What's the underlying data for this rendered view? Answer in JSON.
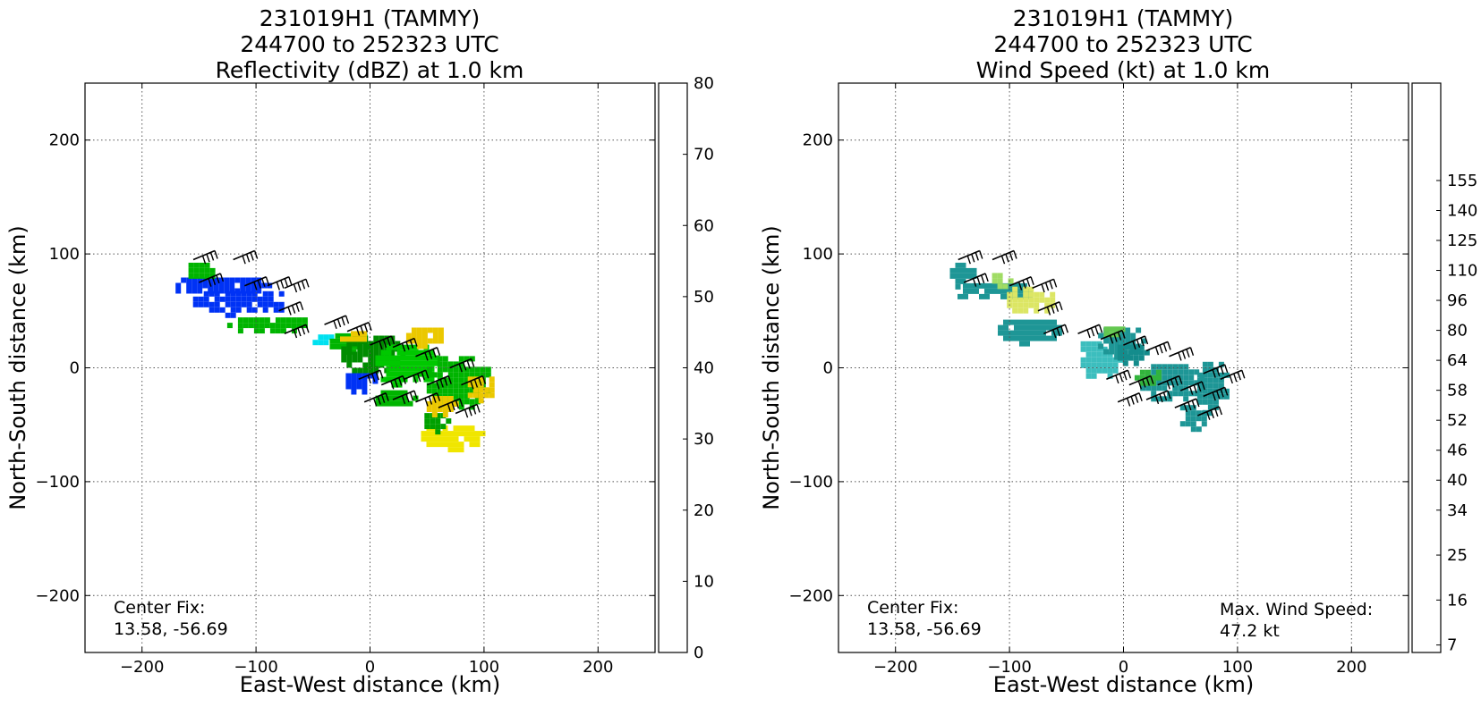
{
  "chart_data": [
    {
      "type": "heatmap",
      "title": [
        "231019H1 (TAMMY)",
        "244700 to 252323 UTC",
        "Reflectivity (dBZ) at 1.0 km"
      ],
      "xlabel": "East-West distance (km)",
      "ylabel": "North-South distance (km)",
      "xlim": [
        -250,
        250
      ],
      "ylim": [
        -250,
        250
      ],
      "xticks": [
        "−200",
        "−100",
        "0",
        "100",
        "200"
      ],
      "xtick_values": [
        -200,
        -100,
        0,
        100,
        200
      ],
      "yticks": [
        "200",
        "100",
        "0",
        "−100",
        "−200"
      ],
      "ytick_values": [
        200,
        100,
        0,
        -100,
        -200
      ],
      "grid": true,
      "annotation": [
        "Center Fix:",
        "13.58, -56.69"
      ],
      "colorbar": {
        "min": 0,
        "max": 80,
        "tick_labels": [
          "0",
          "10",
          "20",
          "30",
          "40",
          "50",
          "60",
          "70",
          "80"
        ],
        "tick_values": [
          0,
          10,
          20,
          30,
          40,
          50,
          60,
          70,
          80
        ],
        "colors": [
          "#00ffff",
          "#00e1f0",
          "#00c8f0",
          "#00aaf0",
          "#008cf0",
          "#005af5",
          "#0032f5",
          "#0023c8",
          "#007882",
          "#00eb1e",
          "#00dc00",
          "#00c800",
          "#00b400",
          "#00a000",
          "#008c00",
          "#64b400",
          "#b4dc00",
          "#ffff00",
          "#f0e600",
          "#ebc800",
          "#f0af00",
          "#f09600",
          "#fa7d00",
          "#ff6400",
          "#ff3200",
          "#ff0000",
          "#eb0000",
          "#d70000",
          "#c30000",
          "#c8005a",
          "#dc00a0",
          "#f000f0",
          "#c832e6",
          "#a050d2",
          "#7846b4",
          "#503264",
          "#000000"
        ]
      },
      "data_regions": [
        {
          "x": -135,
          "y": 75,
          "dx": 45,
          "dy": 9,
          "color": "#0032f5"
        },
        {
          "x": -115,
          "y": 60,
          "dx": 45,
          "dy": 12,
          "color": "#0032f5"
        },
        {
          "x": -90,
          "y": 40,
          "dx": 40,
          "dy": 9,
          "color": "#00b400"
        },
        {
          "x": -150,
          "y": 88,
          "dx": 14,
          "dy": 9,
          "color": "#00b400"
        },
        {
          "x": -45,
          "y": 28,
          "dx": 10,
          "dy": 6,
          "color": "#00e1f0"
        },
        {
          "x": -20,
          "y": 25,
          "dx": 20,
          "dy": 10,
          "color": "#00b400"
        },
        {
          "x": 0,
          "y": 15,
          "dx": 30,
          "dy": 18,
          "color": "#008c00"
        },
        {
          "x": -15,
          "y": 30,
          "dx": 16,
          "dy": 7,
          "color": "#ebc800"
        },
        {
          "x": 30,
          "y": 5,
          "dx": 30,
          "dy": 20,
          "color": "#00c800"
        },
        {
          "x": 45,
          "y": 30,
          "dx": 18,
          "dy": 10,
          "color": "#ebc800"
        },
        {
          "x": 75,
          "y": -10,
          "dx": 30,
          "dy": 25,
          "color": "#00b400"
        },
        {
          "x": 95,
          "y": -15,
          "dx": 14,
          "dy": 12,
          "color": "#ebc800"
        },
        {
          "x": 70,
          "y": -58,
          "dx": 30,
          "dy": 12,
          "color": "#f0e600"
        },
        {
          "x": 55,
          "y": -45,
          "dx": 12,
          "dy": 10,
          "color": "#00a000"
        },
        {
          "x": -10,
          "y": -10,
          "dx": 16,
          "dy": 10,
          "color": "#0032f5"
        },
        {
          "x": 20,
          "y": -25,
          "dx": 20,
          "dy": 10,
          "color": "#00b400"
        },
        {
          "x": 60,
          "y": -30,
          "dx": 15,
          "dy": 10,
          "color": "#ebc800"
        }
      ],
      "wind_barbs": [
        {
          "x": -155,
          "y": 95
        },
        {
          "x": -120,
          "y": 95
        },
        {
          "x": -150,
          "y": 75
        },
        {
          "x": -110,
          "y": 72
        },
        {
          "x": -90,
          "y": 72
        },
        {
          "x": -75,
          "y": 70
        },
        {
          "x": -80,
          "y": 50
        },
        {
          "x": -75,
          "y": 30
        },
        {
          "x": -40,
          "y": 38
        },
        {
          "x": -20,
          "y": 32
        },
        {
          "x": 0,
          "y": 20
        },
        {
          "x": 20,
          "y": 18
        },
        {
          "x": 40,
          "y": 10
        },
        {
          "x": 70,
          "y": 0
        },
        {
          "x": -10,
          "y": -10
        },
        {
          "x": 10,
          "y": -15
        },
        {
          "x": 30,
          "y": -10
        },
        {
          "x": 50,
          "y": -15
        },
        {
          "x": 80,
          "y": -15
        },
        {
          "x": -5,
          "y": -30
        },
        {
          "x": 20,
          "y": -28
        },
        {
          "x": 40,
          "y": -30
        },
        {
          "x": 60,
          "y": -35
        },
        {
          "x": 75,
          "y": -40
        }
      ]
    },
    {
      "type": "heatmap",
      "title": [
        "231019H1 (TAMMY)",
        "244700 to 252323 UTC",
        "Wind Speed (kt) at 1.0 km"
      ],
      "xlabel": "East-West distance (km)",
      "ylabel": "North-South distance (km)",
      "xlim": [
        -250,
        250
      ],
      "ylim": [
        -250,
        250
      ],
      "xticks": [
        "−200",
        "−100",
        "0",
        "100",
        "200"
      ],
      "xtick_values": [
        -200,
        -100,
        0,
        100,
        200
      ],
      "yticks": [
        "200",
        "100",
        "0",
        "−100",
        "−200"
      ],
      "ytick_values": [
        200,
        100,
        0,
        -100,
        -200
      ],
      "grid": true,
      "annotation": [
        "Center Fix:",
        "13.58, -56.69"
      ],
      "annotation2": [
        "Max. Wind Speed:",
        "47.2 kt"
      ],
      "colorbar": {
        "tick_labels": [
          "7",
          "16",
          "25",
          "34",
          "40",
          "46",
          "52",
          "58",
          "64",
          "80",
          "96",
          "110",
          "125",
          "140",
          "155"
        ],
        "tick_bin_index": [
          0,
          3,
          6,
          9,
          11,
          13,
          15,
          17,
          19,
          21,
          23,
          25,
          27,
          29,
          31
        ],
        "colors": [
          "#e6e6e6",
          "#b4f0f0",
          "#78ebeb",
          "#5ae1e1",
          "#46d2d2",
          "#3cbebe",
          "#2daaaa",
          "#1e9696",
          "#148c8c",
          "#0a8282",
          "#14a03c",
          "#32b43c",
          "#64c850",
          "#a0dc64",
          "#dce664",
          "#f0d25a",
          "#fab446",
          "#ff8c3c",
          "#ff5a28",
          "#ff2814",
          "#f00000",
          "#c80000",
          "#a00000",
          "#780000",
          "#780a3c",
          "#a01eb4",
          "#c83cdc",
          "#dc82e6",
          "#e6aaf0",
          "#f0c8f0",
          "#fab4d2",
          "#fa96aa",
          "#fa7882",
          "#f0646e",
          "#e6505a",
          "#d23c4b",
          "#b42841",
          "#961437"
        ]
      },
      "data_regions": [
        {
          "x": -145,
          "y": 85,
          "dx": 12,
          "dy": 12,
          "color": "#1e9696"
        },
        {
          "x": -115,
          "y": 70,
          "dx": 40,
          "dy": 9,
          "color": "#1e9696"
        },
        {
          "x": -85,
          "y": 62,
          "dx": 22,
          "dy": 14,
          "color": "#dce664"
        },
        {
          "x": -110,
          "y": 80,
          "dx": 10,
          "dy": 8,
          "color": "#a0dc64"
        },
        {
          "x": -85,
          "y": 35,
          "dx": 30,
          "dy": 12,
          "color": "#1e9696"
        },
        {
          "x": -25,
          "y": 10,
          "dx": 22,
          "dy": 18,
          "color": "#3cbebe"
        },
        {
          "x": -5,
          "y": 25,
          "dx": 22,
          "dy": 15,
          "color": "#1e9696"
        },
        {
          "x": -10,
          "y": 35,
          "dx": 12,
          "dy": 6,
          "color": "#64c850"
        },
        {
          "x": 5,
          "y": 15,
          "dx": 15,
          "dy": 10,
          "color": "#148c8c"
        },
        {
          "x": 40,
          "y": -10,
          "dx": 30,
          "dy": 18,
          "color": "#1e9696"
        },
        {
          "x": 75,
          "y": -15,
          "dx": 15,
          "dy": 25,
          "color": "#1e9696"
        },
        {
          "x": 20,
          "y": -5,
          "dx": 15,
          "dy": 8,
          "color": "#32b43c"
        },
        {
          "x": 60,
          "y": -40,
          "dx": 15,
          "dy": 12,
          "color": "#1e9696"
        }
      ],
      "wind_barbs": [
        {
          "x": -145,
          "y": 95
        },
        {
          "x": -115,
          "y": 95
        },
        {
          "x": -140,
          "y": 75
        },
        {
          "x": -100,
          "y": 72
        },
        {
          "x": -80,
          "y": 70
        },
        {
          "x": -75,
          "y": 50
        },
        {
          "x": -70,
          "y": 30
        },
        {
          "x": -40,
          "y": 30
        },
        {
          "x": -20,
          "y": 25
        },
        {
          "x": 0,
          "y": 20
        },
        {
          "x": 20,
          "y": 15
        },
        {
          "x": 40,
          "y": 10
        },
        {
          "x": 70,
          "y": -5
        },
        {
          "x": -15,
          "y": -10
        },
        {
          "x": 5,
          "y": -15
        },
        {
          "x": 30,
          "y": -15
        },
        {
          "x": 50,
          "y": -20
        },
        {
          "x": 70,
          "y": -25
        },
        {
          "x": -5,
          "y": -30
        },
        {
          "x": 20,
          "y": -28
        },
        {
          "x": 45,
          "y": -35
        },
        {
          "x": 65,
          "y": -42
        },
        {
          "x": 85,
          "y": -10
        }
      ]
    }
  ]
}
